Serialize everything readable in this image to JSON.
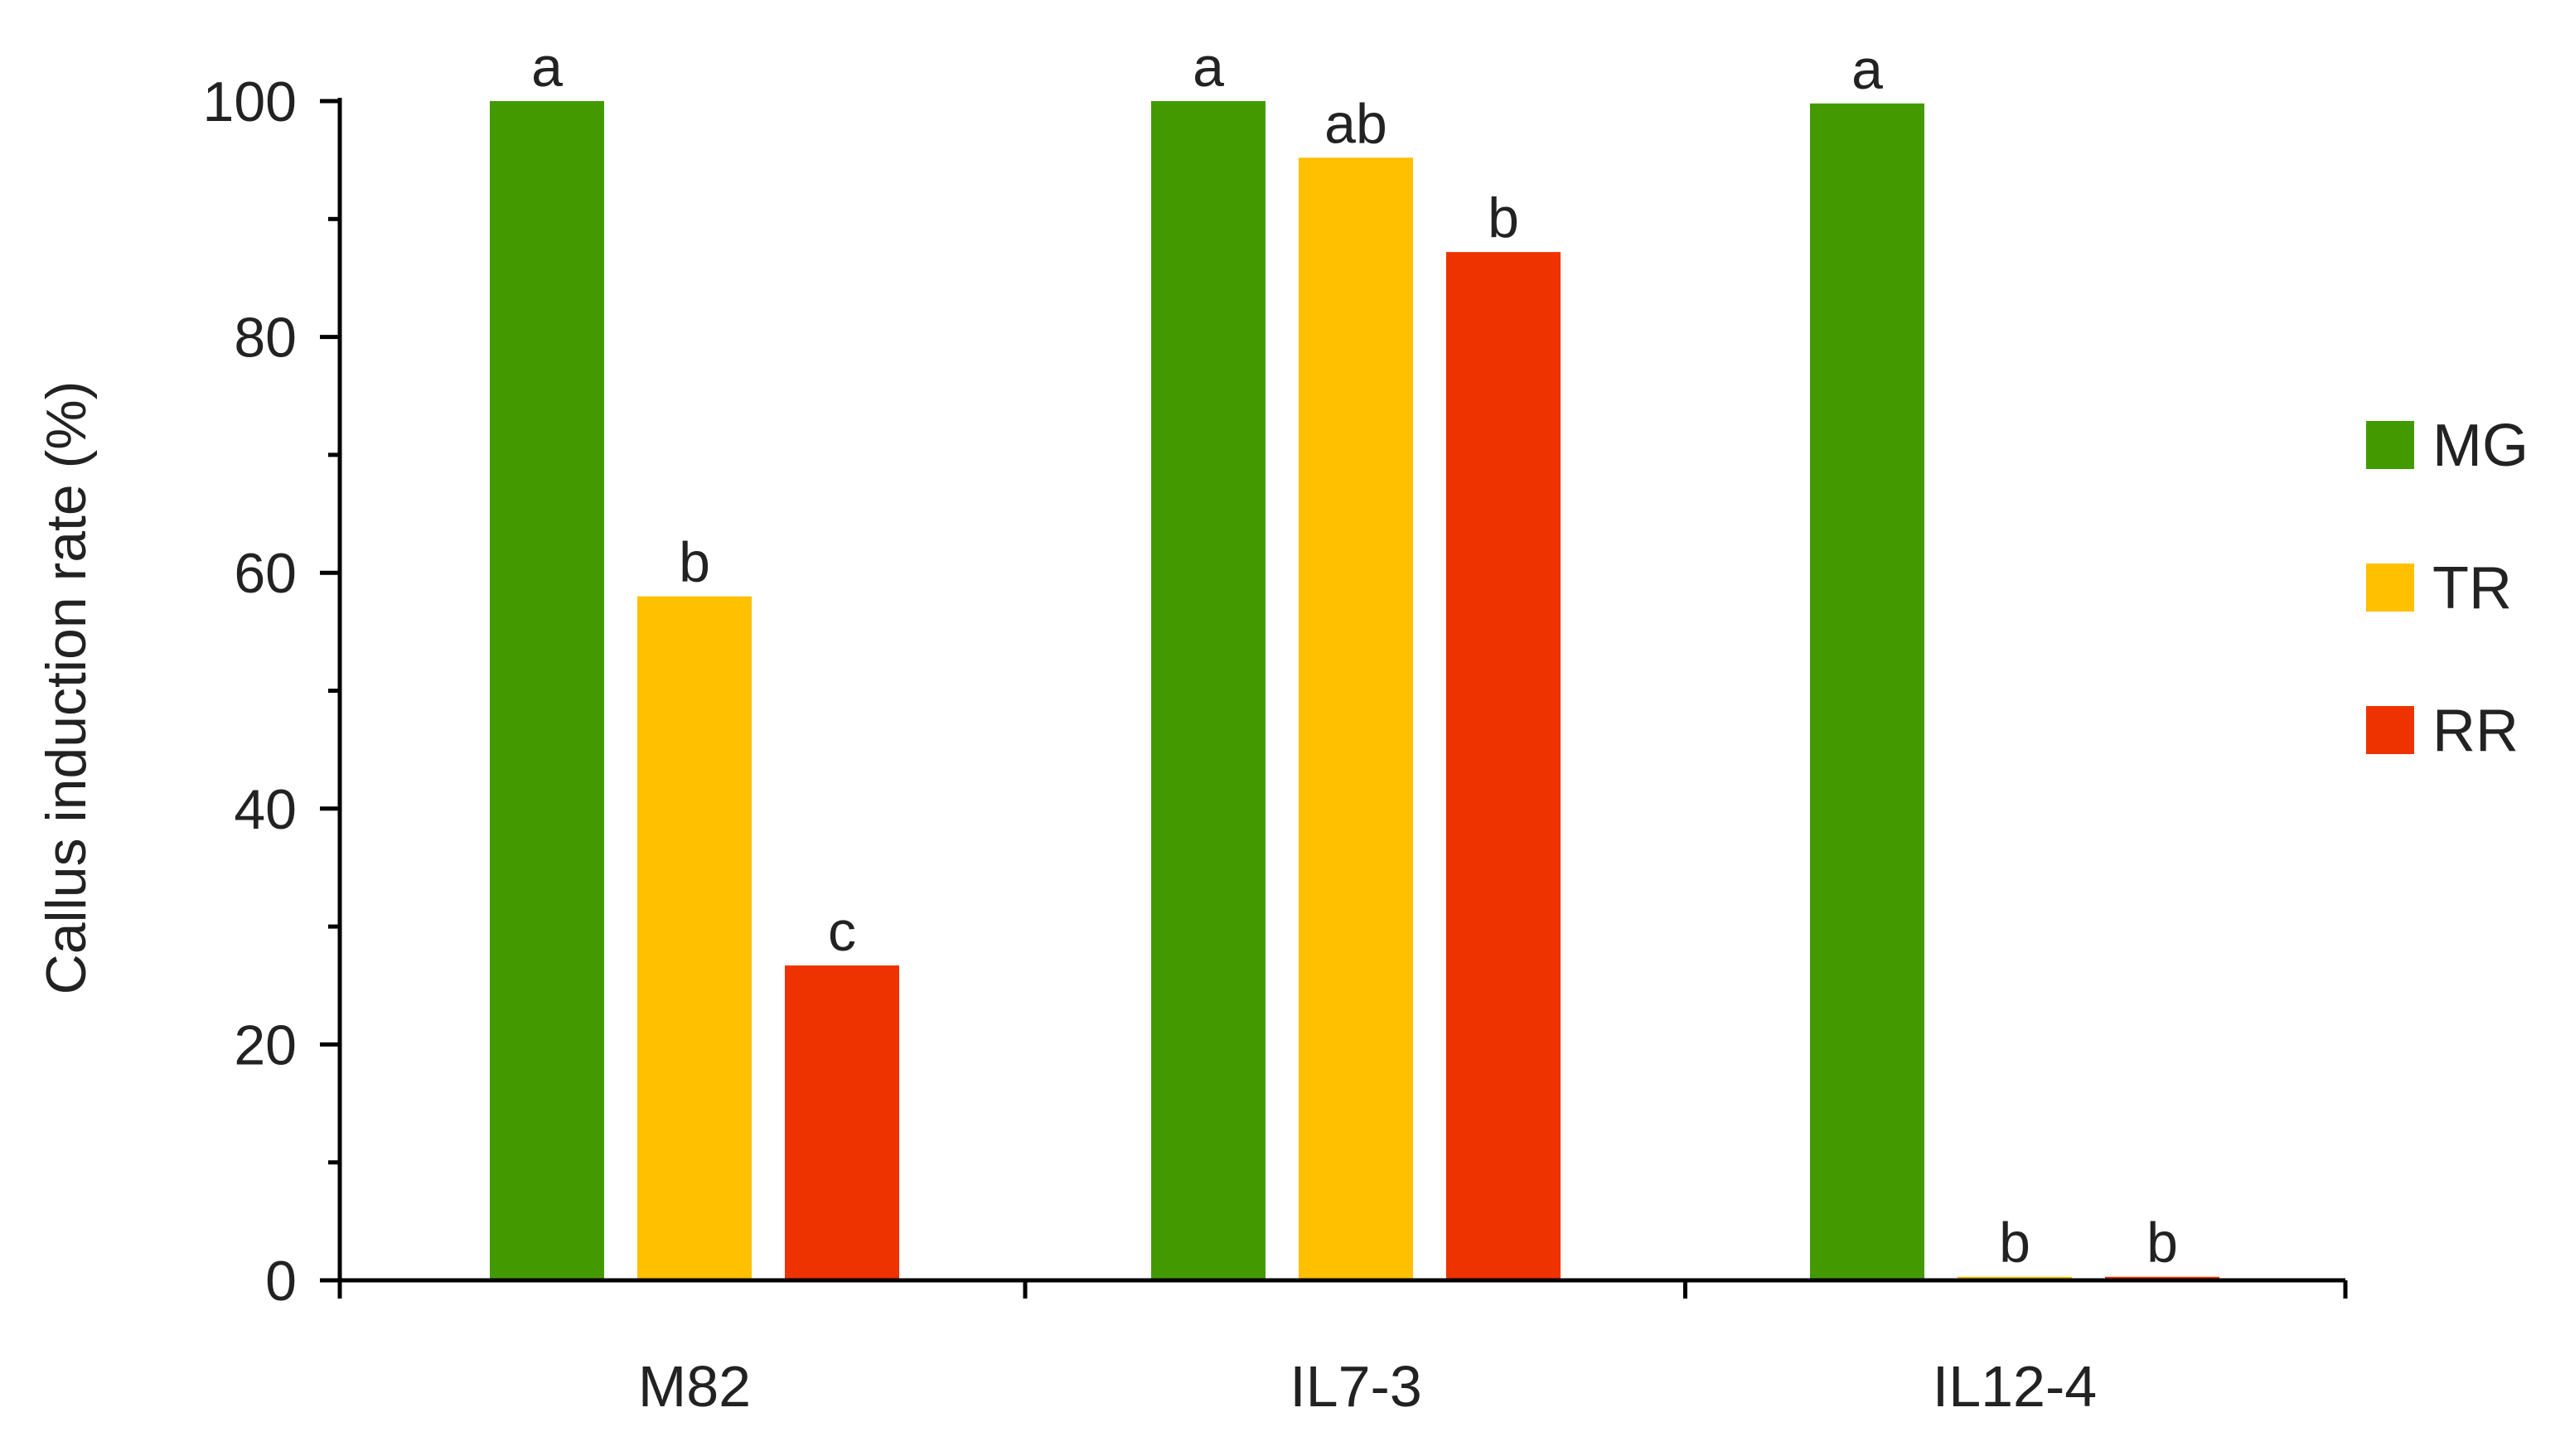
{
  "chart_data": {
    "type": "bar",
    "title": "",
    "xlabel": "",
    "ylabel": "Callus induction rate (%)",
    "ylim": [
      0,
      100
    ],
    "yticks": [
      "0",
      "20",
      "40",
      "60",
      "80",
      "100"
    ],
    "categories": [
      "M82",
      "IL7-3",
      "IL12-4"
    ],
    "series": [
      {
        "name": "MG",
        "color": "#439A00",
        "values": [
          100,
          100,
          99.8
        ],
        "labels": [
          "a",
          "a",
          "a"
        ]
      },
      {
        "name": "TR",
        "color": "#FFC000",
        "values": [
          58,
          95.2,
          0.3
        ],
        "labels": [
          "b",
          "ab",
          "b"
        ]
      },
      {
        "name": "RR",
        "color": "#EE3300",
        "values": [
          26.7,
          87.2,
          0.3
        ],
        "labels": [
          "c",
          "b",
          "b"
        ]
      }
    ],
    "legend_position": "right",
    "grid": false
  }
}
